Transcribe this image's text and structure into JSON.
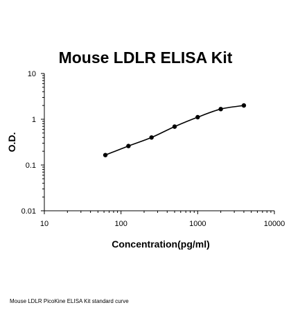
{
  "chart_data": {
    "type": "line",
    "title": "Mouse LDLR ELISA Kit",
    "xlabel": "Concentration(pg/ml)",
    "ylabel": "O.D.",
    "x_scale": "log",
    "y_scale": "log",
    "xlim": [
      10,
      10000
    ],
    "ylim": [
      0.01,
      10
    ],
    "x_ticks": [
      "10",
      "100",
      "1000",
      "10000"
    ],
    "y_ticks": [
      "0.01",
      "0.1",
      "1",
      "10"
    ],
    "grid": false,
    "legend": "none",
    "series": [
      {
        "x": [
          62.5,
          125,
          250,
          500,
          1000,
          2000,
          4000
        ],
        "y": [
          0.165,
          0.26,
          0.4,
          0.69,
          1.11,
          1.67,
          2.0
        ]
      }
    ],
    "colors": {
      "line": "#000000",
      "point": "#000000"
    }
  },
  "caption": "Mouse LDLR PicoKine ELISA Kit standard curve"
}
